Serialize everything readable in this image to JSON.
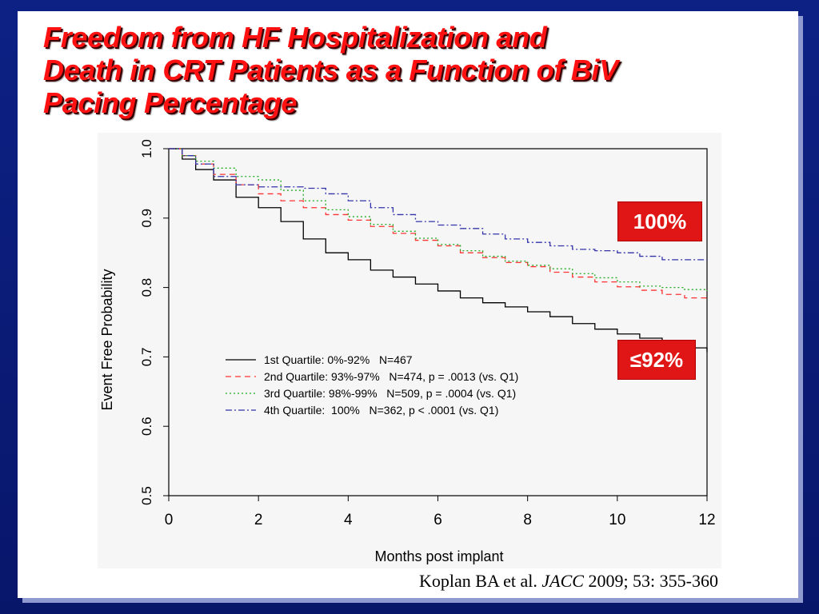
{
  "slide": {
    "title": "Freedom from HF Hospitalization and\nDeath in CRT Patients as a Function of BiV\nPacing Percentage",
    "badge_high": "100%",
    "badge_low": "≤92%",
    "citation": {
      "authors": "Koplan BA et al.",
      "journal": "JACC",
      "details": "2009; 53: 355-360"
    },
    "colors": {
      "title": "#ff1111",
      "badge": "#e01515",
      "background": "#0a1a6e"
    }
  },
  "chart_data": {
    "type": "line",
    "title": "",
    "xlabel": "Months post implant",
    "ylabel": "Event Free Probability",
    "xlim": [
      0,
      12
    ],
    "ylim": [
      0.5,
      1.0
    ],
    "x_ticks": [
      0,
      2,
      4,
      6,
      8,
      10,
      12
    ],
    "y_ticks": [
      0.5,
      0.6,
      0.7,
      0.8,
      0.9,
      1.0
    ],
    "legend_placement": "lower-left",
    "series": [
      {
        "name": "1st Quartile: 0%-92%   N=467",
        "color": "#000000",
        "style": "solid",
        "x": [
          0,
          0.3,
          0.6,
          1.0,
          1.5,
          2.0,
          2.5,
          3.0,
          3.5,
          4.0,
          4.5,
          5.0,
          5.5,
          6.0,
          6.5,
          7.0,
          7.5,
          8.0,
          8.5,
          9.0,
          9.5,
          10.0,
          10.5,
          11.0,
          11.5,
          12.0
        ],
        "y": [
          1.0,
          0.985,
          0.97,
          0.955,
          0.93,
          0.915,
          0.895,
          0.87,
          0.85,
          0.84,
          0.825,
          0.815,
          0.805,
          0.795,
          0.785,
          0.778,
          0.772,
          0.765,
          0.758,
          0.748,
          0.74,
          0.733,
          0.727,
          0.72,
          0.713,
          0.707
        ]
      },
      {
        "name": "2nd Quartile: 93%-97%   N=474, p = .0013 (vs. Q1)",
        "color": "#ff3333",
        "style": "dashed",
        "x": [
          0,
          0.3,
          0.6,
          1.0,
          1.5,
          2.0,
          2.5,
          3.0,
          3.5,
          4.0,
          4.5,
          5.0,
          5.5,
          6.0,
          6.5,
          7.0,
          7.5,
          8.0,
          8.5,
          9.0,
          9.5,
          10.0,
          10.5,
          11.0,
          11.5,
          12.0
        ],
        "y": [
          1.0,
          0.99,
          0.978,
          0.963,
          0.948,
          0.935,
          0.925,
          0.915,
          0.905,
          0.897,
          0.888,
          0.878,
          0.868,
          0.86,
          0.85,
          0.843,
          0.836,
          0.83,
          0.822,
          0.815,
          0.808,
          0.801,
          0.796,
          0.79,
          0.785,
          0.78
        ]
      },
      {
        "name": "3rd Quartile: 98%-99%   N=509, p = .0004 (vs. Q1)",
        "color": "#22aa22",
        "style": "dotted",
        "x": [
          0,
          0.3,
          0.6,
          1.0,
          1.5,
          2.0,
          2.5,
          3.0,
          3.5,
          4.0,
          4.5,
          5.0,
          5.5,
          6.0,
          6.5,
          7.0,
          7.5,
          8.0,
          8.5,
          9.0,
          9.5,
          10.0,
          10.5,
          11.0,
          11.5,
          12.0
        ],
        "y": [
          1.0,
          0.99,
          0.982,
          0.972,
          0.96,
          0.955,
          0.94,
          0.925,
          0.912,
          0.902,
          0.891,
          0.881,
          0.871,
          0.862,
          0.853,
          0.845,
          0.838,
          0.832,
          0.827,
          0.82,
          0.814,
          0.808,
          0.802,
          0.8,
          0.797,
          0.795
        ]
      },
      {
        "name": "4th Quartile:  100%   N=362, p < .0001 (vs. Q1)",
        "color": "#3333aa",
        "style": "dashdot",
        "x": [
          0,
          0.3,
          0.6,
          1.0,
          1.5,
          2.0,
          2.5,
          3.0,
          3.5,
          4.0,
          4.5,
          5.0,
          5.5,
          6.0,
          6.5,
          7.0,
          7.5,
          8.0,
          8.5,
          9.0,
          9.5,
          10.0,
          10.5,
          11.0,
          11.5,
          12.0
        ],
        "y": [
          1.0,
          0.99,
          0.978,
          0.96,
          0.948,
          0.945,
          0.945,
          0.943,
          0.935,
          0.925,
          0.915,
          0.905,
          0.895,
          0.89,
          0.885,
          0.877,
          0.87,
          0.865,
          0.86,
          0.855,
          0.853,
          0.85,
          0.845,
          0.84,
          0.84,
          0.84
        ]
      }
    ],
    "legend_entries": [
      {
        "label": "1st Quartile: 0%-92%   N=467"
      },
      {
        "label": "2nd Quartile: 93%-97%   N=474, p = .0013 (vs. Q1)"
      },
      {
        "label": "3rd Quartile: 98%-99%   N=509, p = .0004 (vs. Q1)"
      },
      {
        "label": "4th Quartile:  100%   N=362, p < .0001 (vs. Q1)"
      }
    ]
  }
}
